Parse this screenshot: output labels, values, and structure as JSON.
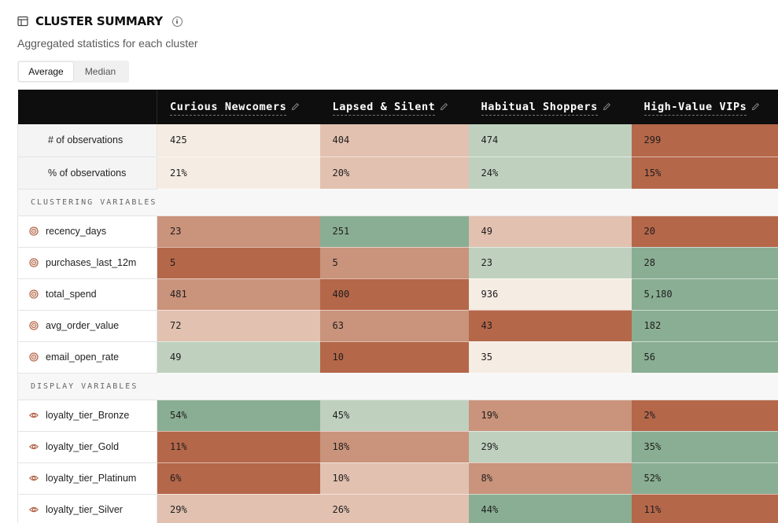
{
  "header": {
    "title": "CLUSTER SUMMARY",
    "subtitle": "Aggregated statistics for each cluster",
    "title_icon": "table-icon",
    "info_icon": "info-icon"
  },
  "toggle": {
    "options": [
      "Average",
      "Median"
    ],
    "selected": "Average"
  },
  "columns": [
    {
      "name": "Curious Newcomers"
    },
    {
      "name": "Lapsed & Silent"
    },
    {
      "name": "Habitual Shoppers"
    },
    {
      "name": "High-Value VIPs"
    }
  ],
  "observations": [
    {
      "label": "# of observations",
      "values": [
        "425",
        "404",
        "474",
        "299"
      ],
      "colors": [
        "#f5ece3",
        "#e2c1b0",
        "#bfd0bf",
        "#b5674a"
      ]
    },
    {
      "label": "% of observations",
      "values": [
        "21%",
        "20%",
        "24%",
        "15%"
      ],
      "colors": [
        "#f5ece3",
        "#e2c1b0",
        "#bfd0bf",
        "#b5674a"
      ]
    }
  ],
  "sections": [
    {
      "title": "CLUSTERING VARIABLES",
      "icon": "target-icon",
      "rows": [
        {
          "label": "recency_days",
          "values": [
            "23",
            "251",
            "49",
            "20"
          ],
          "colors": [
            "#ca937b",
            "#8aae93",
            "#e2c1b0",
            "#b5674a"
          ]
        },
        {
          "label": "purchases_last_12m",
          "values": [
            "5",
            "5",
            "23",
            "28"
          ],
          "colors": [
            "#b5674a",
            "#ca937b",
            "#bfd0bf",
            "#8aae93"
          ]
        },
        {
          "label": "total_spend",
          "values": [
            "481",
            "400",
            "936",
            "5,180"
          ],
          "colors": [
            "#ca937b",
            "#b5674a",
            "#f5ece3",
            "#8aae93"
          ]
        },
        {
          "label": "avg_order_value",
          "values": [
            "72",
            "63",
            "43",
            "182"
          ],
          "colors": [
            "#e2c1b0",
            "#ca937b",
            "#b5674a",
            "#8aae93"
          ]
        },
        {
          "label": "email_open_rate",
          "values": [
            "49",
            "10",
            "35",
            "56"
          ],
          "colors": [
            "#bfd0bf",
            "#b5674a",
            "#f5ece3",
            "#8aae93"
          ]
        }
      ]
    },
    {
      "title": "DISPLAY VARIABLES",
      "icon": "eye-icon",
      "rows": [
        {
          "label": "loyalty_tier_Bronze",
          "values": [
            "54%",
            "45%",
            "19%",
            "2%"
          ],
          "colors": [
            "#8aae93",
            "#bfd0bf",
            "#ca937b",
            "#b5674a"
          ]
        },
        {
          "label": "loyalty_tier_Gold",
          "values": [
            "11%",
            "18%",
            "29%",
            "35%"
          ],
          "colors": [
            "#b5674a",
            "#ca937b",
            "#bfd0bf",
            "#8aae93"
          ]
        },
        {
          "label": "loyalty_tier_Platinum",
          "values": [
            "6%",
            "10%",
            "8%",
            "52%"
          ],
          "colors": [
            "#b5674a",
            "#e2c1b0",
            "#ca937b",
            "#8aae93"
          ]
        },
        {
          "label": "loyalty_tier_Silver",
          "values": [
            "29%",
            "26%",
            "44%",
            "11%"
          ],
          "colors": [
            "#e2c1b0",
            "#e2c1b0",
            "#8aae93",
            "#b5674a"
          ]
        }
      ]
    }
  ]
}
